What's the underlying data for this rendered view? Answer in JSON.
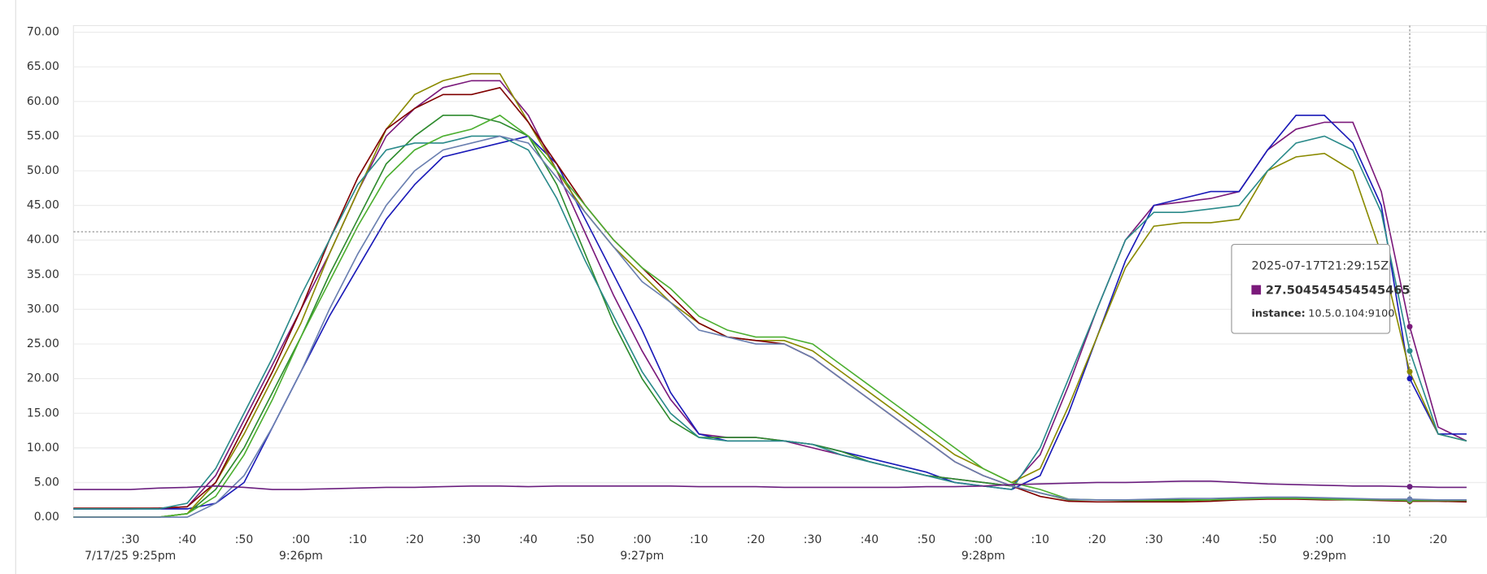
{
  "chart_data": {
    "type": "line",
    "grid": true,
    "xlim": [
      20,
      268.5
    ],
    "ylim": [
      0,
      70
    ],
    "yticks": [
      {
        "value": 0,
        "label": "0.00"
      },
      {
        "value": 5,
        "label": "5.00"
      },
      {
        "value": 10,
        "label": "10.00"
      },
      {
        "value": 15,
        "label": "15.00"
      },
      {
        "value": 20,
        "label": "20.00"
      },
      {
        "value": 25,
        "label": "25.00"
      },
      {
        "value": 30,
        "label": "30.00"
      },
      {
        "value": 35,
        "label": "35.00"
      },
      {
        "value": 40,
        "label": "40.00"
      },
      {
        "value": 45,
        "label": "45.00"
      },
      {
        "value": 50,
        "label": "50.00"
      },
      {
        "value": 55,
        "label": "55.00"
      },
      {
        "value": 60,
        "label": "60.00"
      },
      {
        "value": 65,
        "label": "65.00"
      },
      {
        "value": 70,
        "label": "70.00"
      }
    ],
    "xticks": [
      {
        "value": 30,
        "label": ":30"
      },
      {
        "value": 40,
        "label": ":40"
      },
      {
        "value": 50,
        "label": ":50"
      },
      {
        "value": 60,
        "label": ":00"
      },
      {
        "value": 70,
        "label": ":10"
      },
      {
        "value": 80,
        "label": ":20"
      },
      {
        "value": 90,
        "label": ":30"
      },
      {
        "value": 100,
        "label": ":40"
      },
      {
        "value": 110,
        "label": ":50"
      },
      {
        "value": 120,
        "label": ":00"
      },
      {
        "value": 130,
        "label": ":10"
      },
      {
        "value": 140,
        "label": ":20"
      },
      {
        "value": 150,
        "label": ":30"
      },
      {
        "value": 160,
        "label": ":40"
      },
      {
        "value": 170,
        "label": ":50"
      },
      {
        "value": 180,
        "label": ":00"
      },
      {
        "value": 190,
        "label": ":10"
      },
      {
        "value": 200,
        "label": ":20"
      },
      {
        "value": 210,
        "label": ":30"
      },
      {
        "value": 220,
        "label": ":40"
      },
      {
        "value": 230,
        "label": ":50"
      },
      {
        "value": 240,
        "label": ":00"
      },
      {
        "value": 250,
        "label": ":10"
      },
      {
        "value": 260,
        "label": ":20"
      }
    ],
    "xticks_major": [
      {
        "value": 30,
        "label": "7/17/25 9:25pm"
      },
      {
        "value": 60,
        "label": "9:26pm"
      },
      {
        "value": 120,
        "label": "9:27pm"
      },
      {
        "value": 180,
        "label": "9:28pm"
      },
      {
        "value": 240,
        "label": "9:29pm"
      }
    ],
    "crosshair": {
      "x": 255,
      "y": 41.2
    },
    "x": [
      20,
      25,
      30,
      35,
      40,
      45,
      50,
      55,
      60,
      65,
      70,
      75,
      80,
      85,
      90,
      95,
      100,
      105,
      110,
      115,
      120,
      125,
      130,
      135,
      140,
      145,
      150,
      155,
      160,
      165,
      170,
      175,
      180,
      185,
      190,
      195,
      200,
      205,
      210,
      215,
      220,
      225,
      230,
      235,
      240,
      245,
      250,
      255,
      260,
      265
    ],
    "series": [
      {
        "color": "#7b1a7b",
        "values": [
          1.2,
          1.2,
          1.2,
          1.3,
          1.5,
          6,
          14,
          22,
          30,
          38,
          47,
          55,
          59,
          62,
          63,
          63,
          58,
          50,
          41,
          32,
          24,
          17,
          12,
          11.5,
          11.5,
          11,
          10,
          9,
          8,
          7,
          6,
          5.5,
          5,
          4.5,
          9,
          19,
          30,
          40,
          45,
          45.5,
          46,
          47,
          53,
          56,
          57,
          57,
          47,
          27.5,
          13,
          11
        ]
      },
      {
        "color": "#1a1ab8",
        "values": [
          1.2,
          1.2,
          1.2,
          1.2,
          1.2,
          2,
          5,
          13,
          21,
          29,
          36,
          43,
          48,
          52,
          53,
          54,
          55,
          51,
          43,
          35,
          27,
          18,
          12,
          11,
          11,
          11,
          10.5,
          9.5,
          8.5,
          7.5,
          6.5,
          5,
          4.5,
          4,
          6,
          15,
          26,
          37,
          45,
          46,
          47,
          47,
          53,
          58,
          58,
          54,
          45,
          20,
          12,
          12
        ]
      },
      {
        "color": "#2e8b2e",
        "values": [
          0,
          0,
          0,
          0,
          0.5,
          4,
          10,
          18,
          26,
          35,
          43,
          51,
          55,
          58,
          58,
          57,
          55,
          48,
          38,
          28,
          20,
          14,
          11.5,
          11.5,
          11.5,
          11,
          10.5,
          9.5,
          8,
          7,
          6,
          5.5,
          5,
          4.5,
          3.5,
          2.5,
          2.5,
          2.5,
          2.5,
          2.5,
          2.5,
          2.7,
          2.8,
          2.8,
          2.7,
          2.6,
          2.5,
          2.5,
          2.4,
          2.3
        ]
      },
      {
        "color": "#8a8a00",
        "values": [
          0,
          0,
          0,
          0,
          0.5,
          5,
          12,
          20,
          28,
          38,
          47,
          56,
          61,
          63,
          64,
          64,
          57,
          50,
          44,
          39,
          35,
          31,
          28,
          26,
          25.5,
          25.5,
          24,
          21,
          18,
          15,
          12,
          9,
          7,
          5,
          7,
          16,
          26,
          36,
          42,
          42.5,
          42.5,
          43,
          50,
          52,
          52.5,
          50,
          38,
          21,
          12,
          11
        ]
      },
      {
        "color": "#800000",
        "values": [
          1.3,
          1.3,
          1.3,
          1.3,
          1.5,
          5,
          13,
          21,
          30,
          40,
          49,
          56,
          59,
          61,
          61,
          62,
          57,
          51,
          45,
          40,
          36,
          32,
          28,
          26,
          25.5,
          25,
          23,
          20,
          17,
          14,
          11,
          8,
          6,
          4.5,
          3,
          2.3,
          2.2,
          2.2,
          2.2,
          2.2,
          2.3,
          2.5,
          2.6,
          2.6,
          2.5,
          2.5,
          2.4,
          2.3,
          2.3,
          2.2
        ]
      },
      {
        "color": "#2a8a8a",
        "values": [
          1.2,
          1.2,
          1.2,
          1.2,
          2,
          7,
          15,
          23,
          32,
          40,
          48,
          53,
          54,
          54,
          55,
          55,
          53,
          46,
          37,
          29,
          21,
          15,
          11.5,
          11,
          11,
          11,
          10.5,
          9,
          8,
          7,
          6,
          5,
          4.5,
          4,
          10,
          20,
          30,
          40,
          44,
          44,
          44.5,
          45,
          50,
          54,
          55,
          53,
          44,
          24,
          12,
          11
        ]
      },
      {
        "color": "#4caf30",
        "values": [
          0,
          0,
          0,
          0,
          0.5,
          3,
          9,
          17,
          26,
          34,
          42,
          49,
          53,
          55,
          56,
          58,
          55,
          50,
          45,
          40,
          36,
          33,
          29,
          27,
          26,
          26,
          25,
          22,
          19,
          16,
          13,
          10,
          7,
          5,
          4,
          2.6,
          2.5,
          2.4,
          2.4,
          2.4,
          2.5,
          2.6,
          2.7,
          2.7,
          2.6,
          2.5,
          2.5,
          2.4,
          2.4,
          2.4
        ]
      },
      {
        "color": "#6a7fb0",
        "values": [
          0,
          0,
          0,
          0,
          0,
          2,
          6,
          13,
          21,
          30,
          38,
          45,
          50,
          53,
          54,
          55,
          54,
          49,
          44,
          39,
          34,
          31,
          27,
          26,
          25,
          25,
          23,
          20,
          17,
          14,
          11,
          8,
          6,
          4.5,
          3.5,
          2.6,
          2.5,
          2.5,
          2.6,
          2.7,
          2.7,
          2.8,
          2.9,
          2.9,
          2.8,
          2.7,
          2.6,
          2.6,
          2.5,
          2.5
        ]
      },
      {
        "color": "#6b1f7f",
        "values": [
          4,
          4,
          4,
          4.2,
          4.3,
          4.5,
          4.3,
          4,
          4,
          4.1,
          4.2,
          4.3,
          4.3,
          4.4,
          4.5,
          4.5,
          4.4,
          4.5,
          4.5,
          4.5,
          4.5,
          4.5,
          4.4,
          4.4,
          4.4,
          4.3,
          4.3,
          4.3,
          4.3,
          4.3,
          4.4,
          4.4,
          4.5,
          4.7,
          4.8,
          4.9,
          5,
          5,
          5.1,
          5.2,
          5.2,
          5,
          4.8,
          4.7,
          4.6,
          4.5,
          4.5,
          4.4,
          4.3,
          4.3
        ]
      }
    ],
    "tooltip": {
      "time": "2025-07-17T21:29:15Z",
      "color": "#7b1a7b",
      "value": 27.504545454545465,
      "label": "instance:",
      "text": "10.5.0.104:9100"
    }
  }
}
